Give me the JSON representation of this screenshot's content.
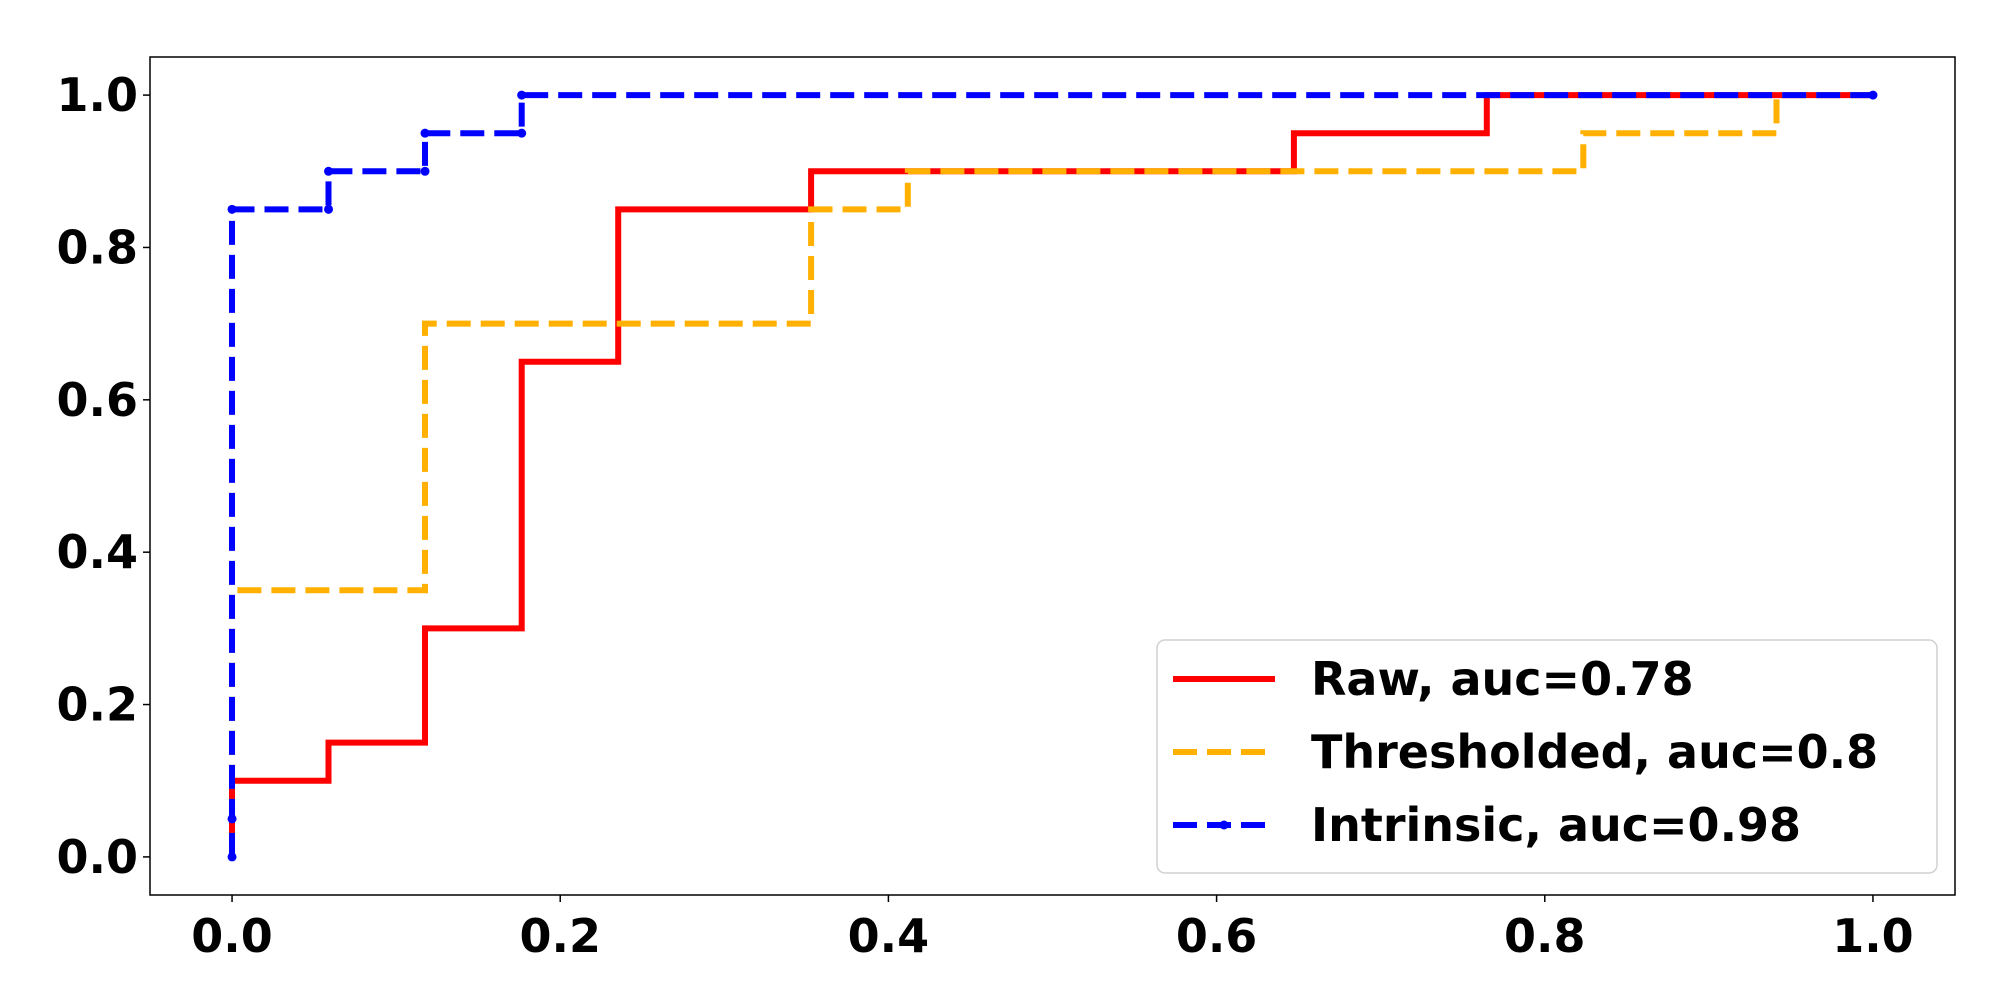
{
  "chart_data": {
    "type": "line",
    "title": "",
    "xlabel": "",
    "ylabel": "",
    "xlim": [
      -0.05,
      1.05
    ],
    "ylim": [
      -0.05,
      1.05
    ],
    "xticks": [
      "0.0",
      "0.2",
      "0.4",
      "0.6",
      "0.8",
      "1.0"
    ],
    "yticks": [
      "0.0",
      "0.2",
      "0.4",
      "0.6",
      "0.8",
      "1.0"
    ],
    "xtick_values": [
      0,
      0.2,
      0.4,
      0.6,
      0.8,
      1.0
    ],
    "ytick_values": [
      0,
      0.2,
      0.4,
      0.6,
      0.8,
      1.0
    ],
    "grid": false,
    "legend_position": "lower-right",
    "series": [
      {
        "name": "Raw, auc=0.78",
        "color": "#ff0000",
        "style": "solid",
        "x": [
          0,
          0,
          0.0588,
          0.0588,
          0.1176,
          0.1176,
          0.1765,
          0.1765,
          0.2353,
          0.2353,
          0.3529,
          0.3529,
          0.6471,
          0.6471,
          0.7647,
          0.7647,
          1.0
        ],
        "y": [
          0,
          0.1,
          0.1,
          0.15,
          0.15,
          0.3,
          0.3,
          0.65,
          0.65,
          0.85,
          0.85,
          0.9,
          0.9,
          0.95,
          0.95,
          1.0,
          1.0
        ]
      },
      {
        "name": "Thresholded, auc=0.8",
        "color": "#ffb000",
        "style": "dashed",
        "x": [
          0,
          0,
          0.1176,
          0.1176,
          0.3529,
          0.3529,
          0.4118,
          0.4118,
          0.8235,
          0.8235,
          0.9412,
          0.9412,
          1.0
        ],
        "y": [
          0,
          0.35,
          0.35,
          0.7,
          0.7,
          0.85,
          0.85,
          0.9,
          0.9,
          0.95,
          0.95,
          1.0,
          1.0
        ]
      },
      {
        "name": "Intrinsic, auc=0.98",
        "color": "#0000ff",
        "style": "dashed-marker",
        "x": [
          0,
          0,
          0,
          0.0588,
          0.0588,
          0.1176,
          0.1176,
          0.1765,
          0.1765,
          1.0
        ],
        "y": [
          0,
          0.05,
          0.85,
          0.85,
          0.9,
          0.9,
          0.95,
          0.95,
          1.0,
          1.0
        ]
      }
    ]
  }
}
